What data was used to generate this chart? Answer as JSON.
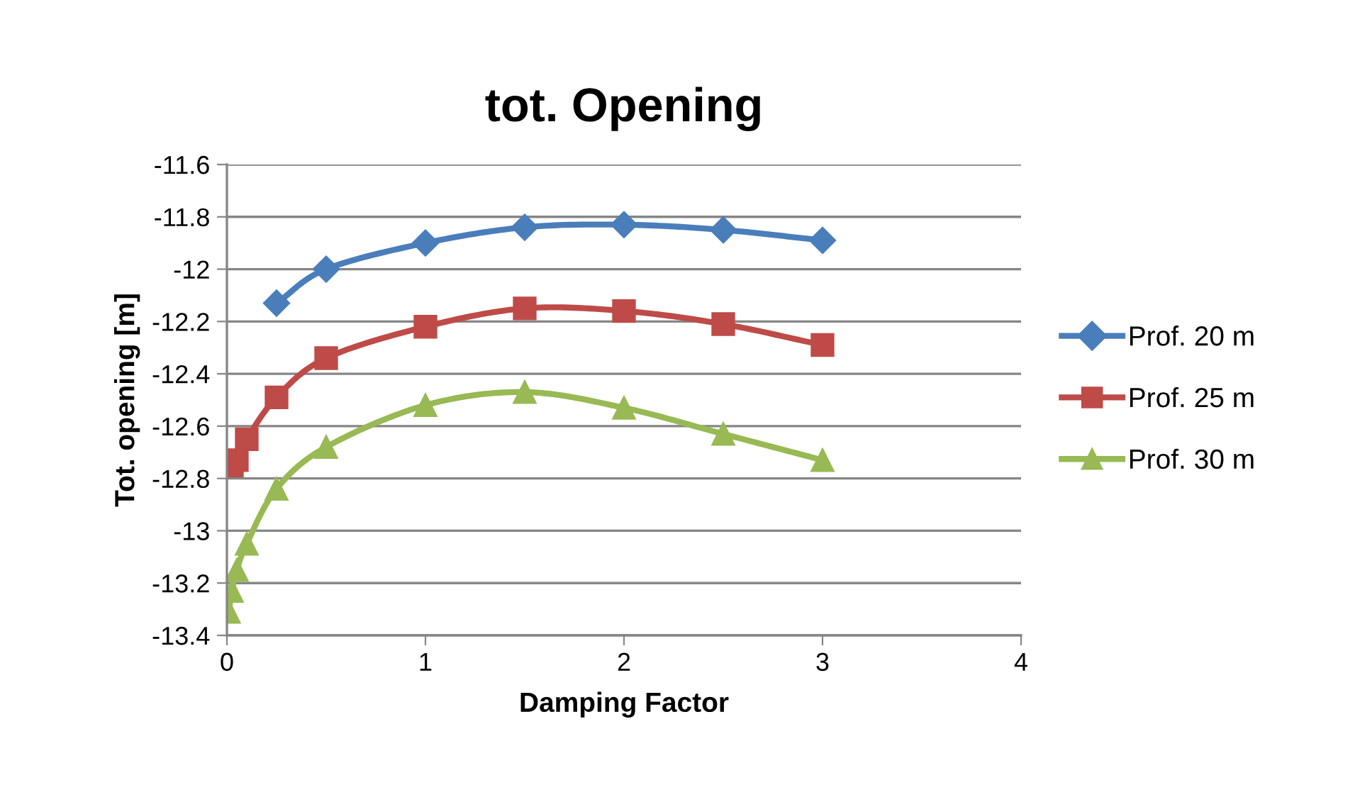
{
  "chart_data": {
    "type": "line",
    "title": "tot. Opening",
    "xlabel": "Damping Factor",
    "ylabel": "Tot. opening [m]",
    "xlim": [
      0,
      4
    ],
    "xticks": [
      0,
      1,
      2,
      3,
      4
    ],
    "ylim": [
      -13.4,
      -11.6
    ],
    "yticks": [
      -13.4,
      -13.2,
      -13,
      -12.8,
      -12.6,
      -12.4,
      -12.2,
      -12,
      -11.8,
      -11.6
    ],
    "grid": "y",
    "legend": "right",
    "line_style": "solid",
    "series": [
      {
        "name": "Prof. 20 m",
        "color": "#4a7ebb",
        "marker": "diamond",
        "x": [
          0.25,
          0.5,
          1,
          1.5,
          2,
          2.5,
          3
        ],
        "values": [
          -12.13,
          -12.0,
          -11.9,
          -11.84,
          -11.83,
          -11.85,
          -11.89
        ]
      },
      {
        "name": "Prof. 25 m",
        "color": "#be4b48",
        "marker": "square",
        "x": [
          0.025,
          0.05,
          0.1,
          0.25,
          0.5,
          1,
          1.5,
          2,
          2.5,
          3
        ],
        "values": [
          -12.75,
          -12.73,
          -12.65,
          -12.49,
          -12.34,
          -12.22,
          -12.15,
          -12.16,
          -12.21,
          -12.29
        ]
      },
      {
        "name": "Prof. 30 m",
        "color": "#98b954",
        "marker": "triangle",
        "x": [
          0.01,
          0.025,
          0.05,
          0.1,
          0.25,
          0.5,
          1,
          1.5,
          2,
          2.5,
          3
        ],
        "values": [
          -13.31,
          -13.23,
          -13.15,
          -13.05,
          -12.84,
          -12.68,
          -12.52,
          -12.47,
          -12.53,
          -12.63,
          -12.73
        ]
      }
    ]
  }
}
